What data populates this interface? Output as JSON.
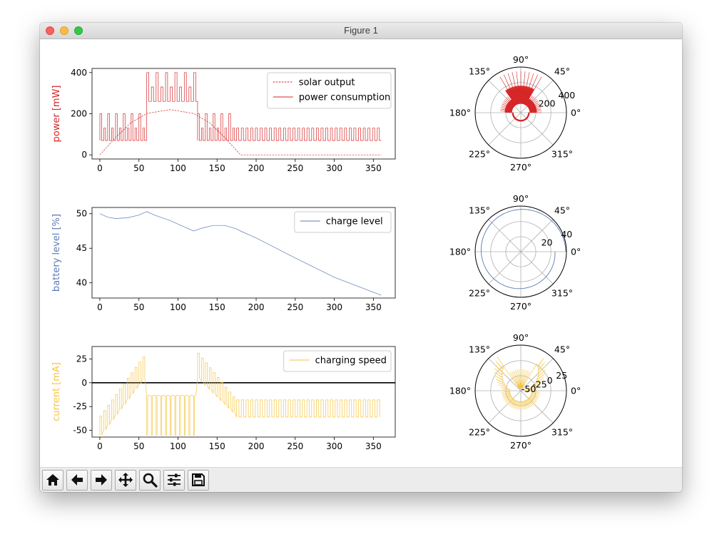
{
  "window": {
    "title": "Figure 1"
  },
  "toolbar": {
    "buttons": [
      {
        "icon": "home-icon"
      },
      {
        "icon": "back-arrow-icon"
      },
      {
        "icon": "forward-arrow-icon"
      },
      {
        "icon": "pan-icon"
      },
      {
        "icon": "zoom-icon"
      },
      {
        "icon": "configure-subplots-icon"
      },
      {
        "icon": "save-icon"
      }
    ]
  },
  "colors": {
    "red": "#d62728",
    "blue": "#5a7bb5",
    "orange": "#f5c542"
  },
  "chart_data": [
    {
      "type": "line",
      "ylabel": "power [mW]",
      "ylabel_color": "#d62728",
      "xlim": [
        -10,
        378
      ],
      "ylim": [
        -20,
        420
      ],
      "xticks": [
        0,
        50,
        100,
        150,
        200,
        250,
        300,
        350
      ],
      "yticks": [
        0,
        200,
        400
      ],
      "legend": "upper right",
      "series": [
        {
          "name": "solar output",
          "style": "dashed",
          "color": "#d62728",
          "points": [
            [
              0,
              0
            ],
            [
              20,
              84
            ],
            [
              40,
              157
            ],
            [
              60,
              201
            ],
            [
              90,
              220
            ],
            [
              120,
              201
            ],
            [
              140,
              157
            ],
            [
              160,
              84
            ],
            [
              180,
              0
            ],
            [
              360,
              0
            ]
          ]
        },
        {
          "name": "power consumption",
          "style": "solid",
          "color": "#d62728",
          "segments": [
            {
              "range": [
                0,
                60
              ],
              "baseline": 70,
              "highs": [
                200,
                130
              ],
              "period": 5
            },
            {
              "range": [
                60,
                125
              ],
              "baseline": 260,
              "highs": [
                400,
                330
              ],
              "period": 6
            },
            {
              "range": [
                125,
                175
              ],
              "baseline": 70,
              "highs": [
                200,
                130
              ],
              "period": 5
            },
            {
              "range": [
                175,
                360
              ],
              "baseline": 70,
              "highs": [
                130
              ],
              "period": 6
            }
          ]
        }
      ]
    },
    {
      "type": "line",
      "ylabel": "battery level [%]",
      "ylabel_color": "#5a7bb5",
      "xlim": [
        -10,
        378
      ],
      "ylim": [
        37.8,
        50.9
      ],
      "xticks": [
        0,
        50,
        100,
        150,
        200,
        250,
        300,
        350
      ],
      "yticks": [
        40,
        45,
        50
      ],
      "legend": "upper right",
      "series": [
        {
          "name": "charge level",
          "color": "#5a7bb5",
          "points": [
            [
              0,
              50.0
            ],
            [
              10,
              49.5
            ],
            [
              20,
              49.3
            ],
            [
              35,
              49.4
            ],
            [
              50,
              49.8
            ],
            [
              60,
              50.3
            ],
            [
              70,
              49.8
            ],
            [
              90,
              49.0
            ],
            [
              110,
              48.0
            ],
            [
              120,
              47.5
            ],
            [
              130,
              47.9
            ],
            [
              145,
              48.3
            ],
            [
              160,
              48.3
            ],
            [
              175,
              47.8
            ],
            [
              180,
              47.5
            ],
            [
              200,
              46.5
            ],
            [
              250,
              43.6
            ],
            [
              300,
              40.8
            ],
            [
              360,
              38.2
            ]
          ]
        }
      ]
    },
    {
      "type": "line",
      "ylabel": "current [mA]",
      "ylabel_color": "#f5c542",
      "xlim": [
        -10,
        378
      ],
      "ylim": [
        -57,
        38
      ],
      "xticks": [
        0,
        50,
        100,
        150,
        200,
        250,
        300,
        350
      ],
      "yticks": [
        -50,
        -25,
        0,
        25
      ],
      "hline": 0,
      "legend": "upper right",
      "series": [
        {
          "name": "charging speed",
          "color": "#f5c542",
          "segments": [
            {
              "range": [
                0,
                60
              ],
              "low_start": -55,
              "low_end": 10,
              "high_start": -35,
              "high_end": 33,
              "period": 5
            },
            {
              "range": [
                60,
                125
              ],
              "low": -55,
              "mid": -14,
              "high": -13,
              "period": 6
            },
            {
              "range": [
                125,
                175
              ],
              "low_start": 5,
              "low_end": -35,
              "high_start": 31,
              "high_end": -20,
              "period": 5
            },
            {
              "range": [
                175,
                360
              ],
              "low": -36,
              "high": -18,
              "period": 6
            }
          ]
        }
      ]
    },
    {
      "type": "polar",
      "angle_ticks": [
        "0°",
        "45°",
        "90°",
        "135°",
        "180°",
        "225°",
        "270°",
        "315°"
      ],
      "radial_ticks": [
        "200",
        "400"
      ],
      "color": "#d62728",
      "rmax": 440,
      "base_r": 155,
      "peak_r": 400
    },
    {
      "type": "polar",
      "angle_ticks": [
        "0°",
        "45°",
        "90°",
        "135°",
        "180°",
        "225°",
        "270°",
        "315°"
      ],
      "radial_ticks": [
        "20",
        "40"
      ],
      "color": "#5a7bb5",
      "rmax": 51,
      "radius_range": [
        38.2,
        50.3
      ]
    },
    {
      "type": "polar",
      "angle_ticks": [
        "0°",
        "45°",
        "90°",
        "135°",
        "180°",
        "225°",
        "270°",
        "315°"
      ],
      "radial_ticks": [
        "-50",
        "-25",
        "0",
        "25"
      ],
      "color": "#f5c542",
      "rmin": -60,
      "rmax": 40
    }
  ]
}
